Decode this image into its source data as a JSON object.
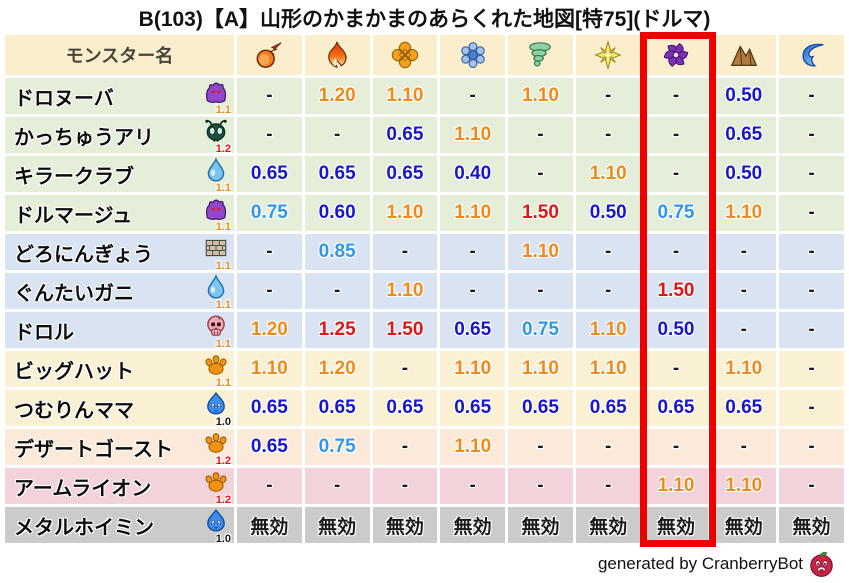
{
  "title": "B(103)【A】山形のかまかまのあらくれた地図[特75](ドルマ)",
  "header": {
    "monster_column": "モンスター名"
  },
  "chart_data": {
    "type": "table",
    "title": "B(103)【A】山形のかまかまのあらくれた地図[特75](ドルマ)",
    "element_columns": [
      "fireball",
      "flame",
      "explosion",
      "snowflake",
      "tornado",
      "star",
      "pinwheel-dark",
      "mountain",
      "wave"
    ],
    "highlighted_column_index": 6,
    "rows": [
      {
        "name": "ドロヌーバ",
        "icon": "purple-blob",
        "level": "1.1",
        "row_color": "green",
        "values": [
          "-",
          "1.20",
          "1.10",
          "-",
          "1.10",
          "-",
          "-",
          "0.50",
          "-"
        ]
      },
      {
        "name": "かっちゅうアリ",
        "icon": "ant",
        "level": "1.2",
        "row_color": "green",
        "values": [
          "-",
          "-",
          "0.65",
          "1.10",
          "-",
          "-",
          "-",
          "0.65",
          "-"
        ]
      },
      {
        "name": "キラークラブ",
        "icon": "droplet",
        "level": "1.1",
        "row_color": "green",
        "values": [
          "0.65",
          "0.65",
          "0.65",
          "0.40",
          "-",
          "1.10",
          "-",
          "0.50",
          "-"
        ]
      },
      {
        "name": "ドルマージュ",
        "icon": "purple-blob",
        "level": "1.1",
        "row_color": "green",
        "values": [
          "0.75",
          "0.60",
          "1.10",
          "1.10",
          "1.50",
          "0.50",
          "0.75",
          "1.10",
          "-"
        ]
      },
      {
        "name": "どろにんぎょう",
        "icon": "brick",
        "level": "1.1",
        "row_color": "blue",
        "values": [
          "-",
          "0.85",
          "-",
          "-",
          "1.10",
          "-",
          "-",
          "-",
          "-"
        ]
      },
      {
        "name": "ぐんたいガニ",
        "icon": "droplet",
        "level": "1.1",
        "row_color": "blue",
        "values": [
          "-",
          "-",
          "1.10",
          "-",
          "-",
          "-",
          "1.50",
          "-",
          "-"
        ]
      },
      {
        "name": "ドロル",
        "icon": "skull",
        "level": "1.1",
        "row_color": "blue",
        "values": [
          "1.20",
          "1.25",
          "1.50",
          "0.65",
          "0.75",
          "1.10",
          "0.50",
          "-",
          "-"
        ]
      },
      {
        "name": "ビッグハット",
        "icon": "paw",
        "level": "1.1",
        "row_color": "cream",
        "values": [
          "1.10",
          "1.20",
          "-",
          "1.10",
          "1.10",
          "1.10",
          "-",
          "1.10",
          "-"
        ]
      },
      {
        "name": "つむりんママ",
        "icon": "slime",
        "level": "1.0",
        "row_color": "cream",
        "values": [
          "0.65",
          "0.65",
          "0.65",
          "0.65",
          "0.65",
          "0.65",
          "0.65",
          "0.65",
          "-"
        ]
      },
      {
        "name": "デザートゴースト",
        "icon": "paw",
        "level": "1.2",
        "row_color": "peach",
        "values": [
          "0.65",
          "0.75",
          "-",
          "1.10",
          "-",
          "-",
          "-",
          "-",
          "-"
        ]
      },
      {
        "name": "アームライオン",
        "icon": "paw",
        "level": "1.2",
        "row_color": "pink",
        "values": [
          "-",
          "-",
          "-",
          "-",
          "-",
          "-",
          "1.10",
          "1.10",
          "-"
        ]
      },
      {
        "name": "メタルホイミン",
        "icon": "slime",
        "level": "1.0",
        "row_color": "gray",
        "values": [
          "無効",
          "無効",
          "無効",
          "無効",
          "無効",
          "無効",
          "無効",
          "無効",
          "無効"
        ]
      }
    ]
  },
  "colors": {
    "multiplier_up": "#ef8a1a",
    "multiplier_strong_up": "#e01616",
    "multiplier_down": "#1717c9",
    "multiplier_slight_down": "#2f96e8",
    "neutral_text": "#1a1a1a",
    "highlight_box": "#ee0000",
    "header_bg": "#fbeecd",
    "row_green": "#e4eed8",
    "row_blue": "#d9e3f1",
    "row_cream": "#faf0d4",
    "row_peach": "#fbeada",
    "row_pink": "#f3d3da",
    "row_gray": "#cbcbcb"
  },
  "footer": {
    "credit": "generated by CranberryBot",
    "icon": "cranberry-icon"
  }
}
